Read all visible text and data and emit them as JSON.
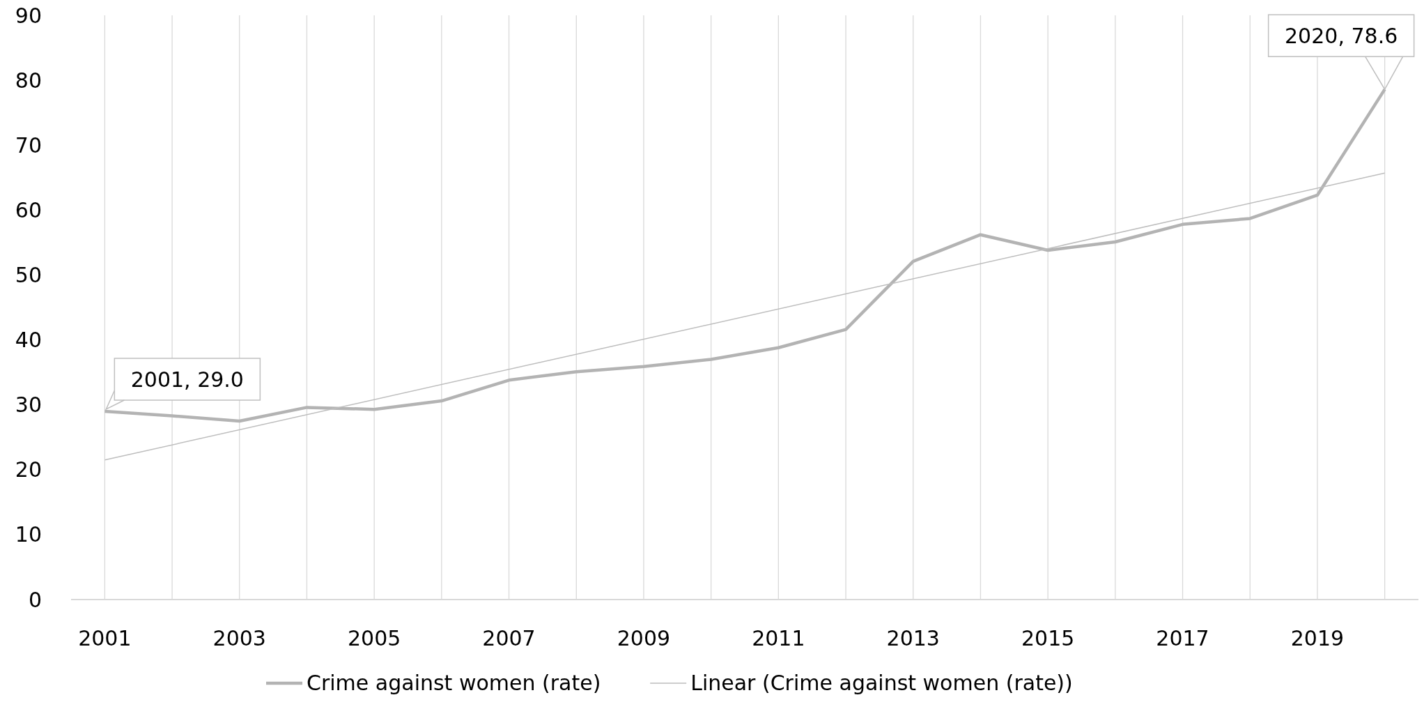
{
  "chart_data": {
    "type": "line",
    "x": [
      2001,
      2002,
      2003,
      2004,
      2005,
      2006,
      2007,
      2008,
      2009,
      2010,
      2011,
      2012,
      2013,
      2014,
      2015,
      2016,
      2017,
      2018,
      2019,
      2020
    ],
    "series": [
      {
        "name": "Crime against women (rate)",
        "color": "#b3b3b3",
        "values": [
          29.0,
          28.3,
          27.5,
          29.6,
          29.3,
          30.6,
          33.8,
          35.1,
          35.9,
          37.0,
          38.8,
          41.6,
          52.1,
          56.2,
          53.8,
          55.1,
          57.8,
          58.7,
          62.3,
          78.6
        ]
      },
      {
        "name": "Linear (Crime against women (rate))",
        "type": "line",
        "color": "#bdbdbd",
        "x": [
          2001,
          2020
        ],
        "values": [
          21.5,
          65.7
        ]
      }
    ],
    "xlim": [
      2000.5,
      2020.5
    ],
    "xticks": [
      2001,
      {
        "value": 2002,
        "label": null
      },
      2003,
      {
        "value": 2004,
        "label": null
      },
      2005,
      {
        "value": 2006,
        "label": null
      },
      2007,
      {
        "value": 2008,
        "label": null
      },
      2009,
      {
        "value": 2010,
        "label": null
      },
      2011,
      {
        "value": 2012,
        "label": null
      },
      2013,
      {
        "value": 2014,
        "label": null
      },
      2015,
      {
        "value": 2016,
        "label": null
      },
      2017,
      {
        "value": 2018,
        "label": null
      },
      2019,
      {
        "value": 2020,
        "label": null
      }
    ],
    "ylim": [
      0,
      90
    ],
    "yticks": [
      0,
      10,
      20,
      30,
      40,
      50,
      60,
      70,
      80,
      90
    ],
    "grid": "x",
    "legend": "bottom",
    "marker": "none",
    "annotations": [
      {
        "text": "2001, 29.0",
        "x": 2001,
        "y": 29.0
      },
      {
        "text": "2020, 78.6",
        "x": 2020,
        "y": 78.6
      }
    ]
  }
}
